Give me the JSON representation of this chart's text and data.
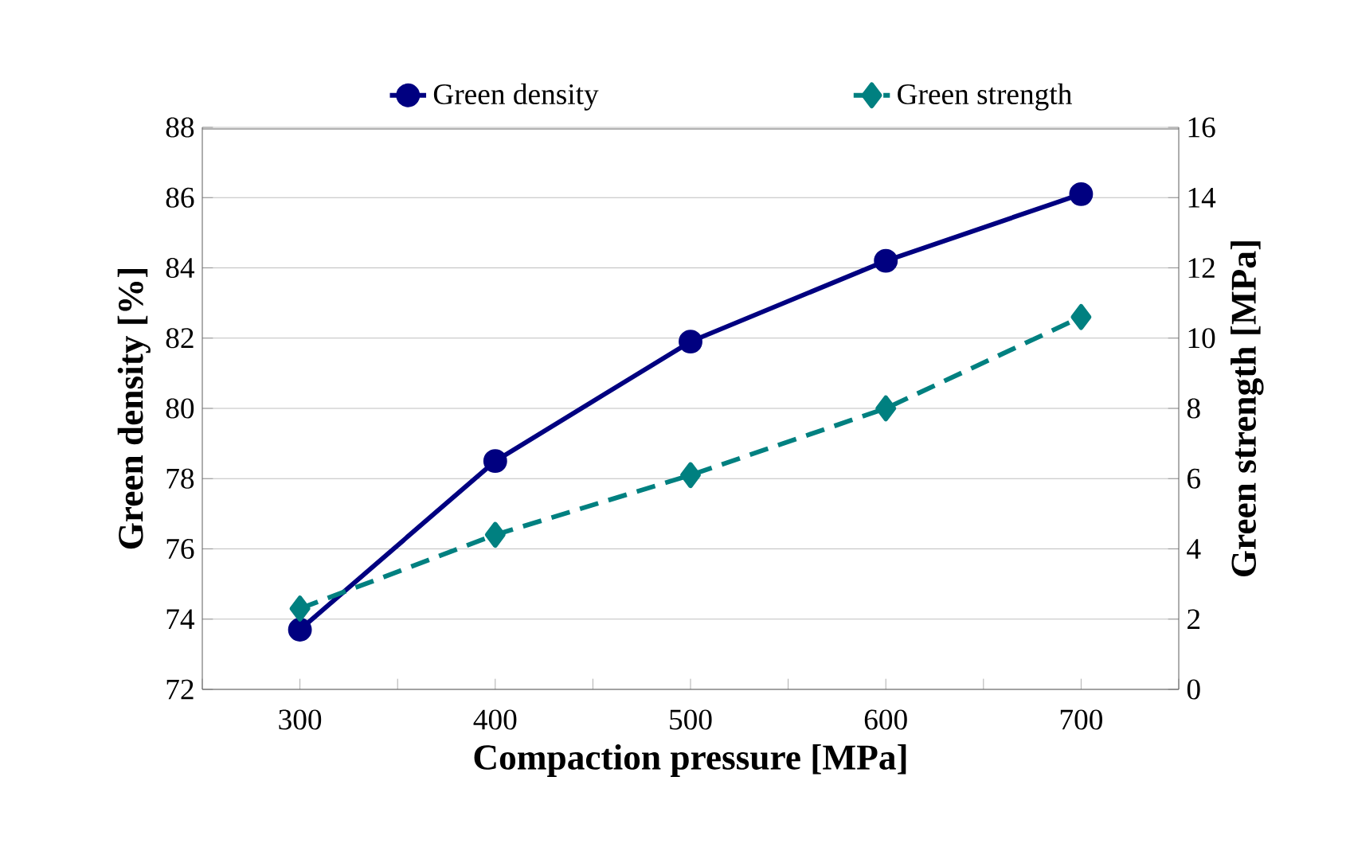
{
  "chart_data": {
    "type": "line",
    "xlabel": "Compaction pressure [MPa]",
    "ylabel": "Green density [%]",
    "y2label": "Green strength [MPa]",
    "x": [
      300,
      400,
      500,
      600,
      700
    ],
    "xlim": [
      250,
      750
    ],
    "xticks": [
      {
        "value": 250,
        "label": null
      },
      300,
      {
        "value": 350,
        "label": null
      },
      400,
      {
        "value": 450,
        "label": null
      },
      500,
      {
        "value": 550,
        "label": null
      },
      600,
      {
        "value": 650,
        "label": null
      },
      700,
      {
        "value": 750,
        "label": null
      }
    ],
    "ylim": [
      72,
      88
    ],
    "yticks": [
      72,
      74,
      76,
      78,
      80,
      82,
      84,
      86,
      88
    ],
    "y2lim": [
      0,
      16
    ],
    "y2ticks": [
      0,
      2,
      4,
      6,
      8,
      10,
      12,
      14,
      16
    ],
    "grid": "y",
    "legend": "top",
    "series": [
      {
        "name": "Green density",
        "color": "#000080",
        "marker": "circle",
        "line_style": "solid",
        "values": [
          73.7,
          78.5,
          81.9,
          84.2,
          86.1
        ]
      },
      {
        "name": "Green strength",
        "color": "#008080",
        "marker": "diamond",
        "line_style": "dashed",
        "axis": "y2",
        "values": [
          2.3,
          4.4,
          6.1,
          8.0,
          10.6
        ]
      }
    ]
  }
}
